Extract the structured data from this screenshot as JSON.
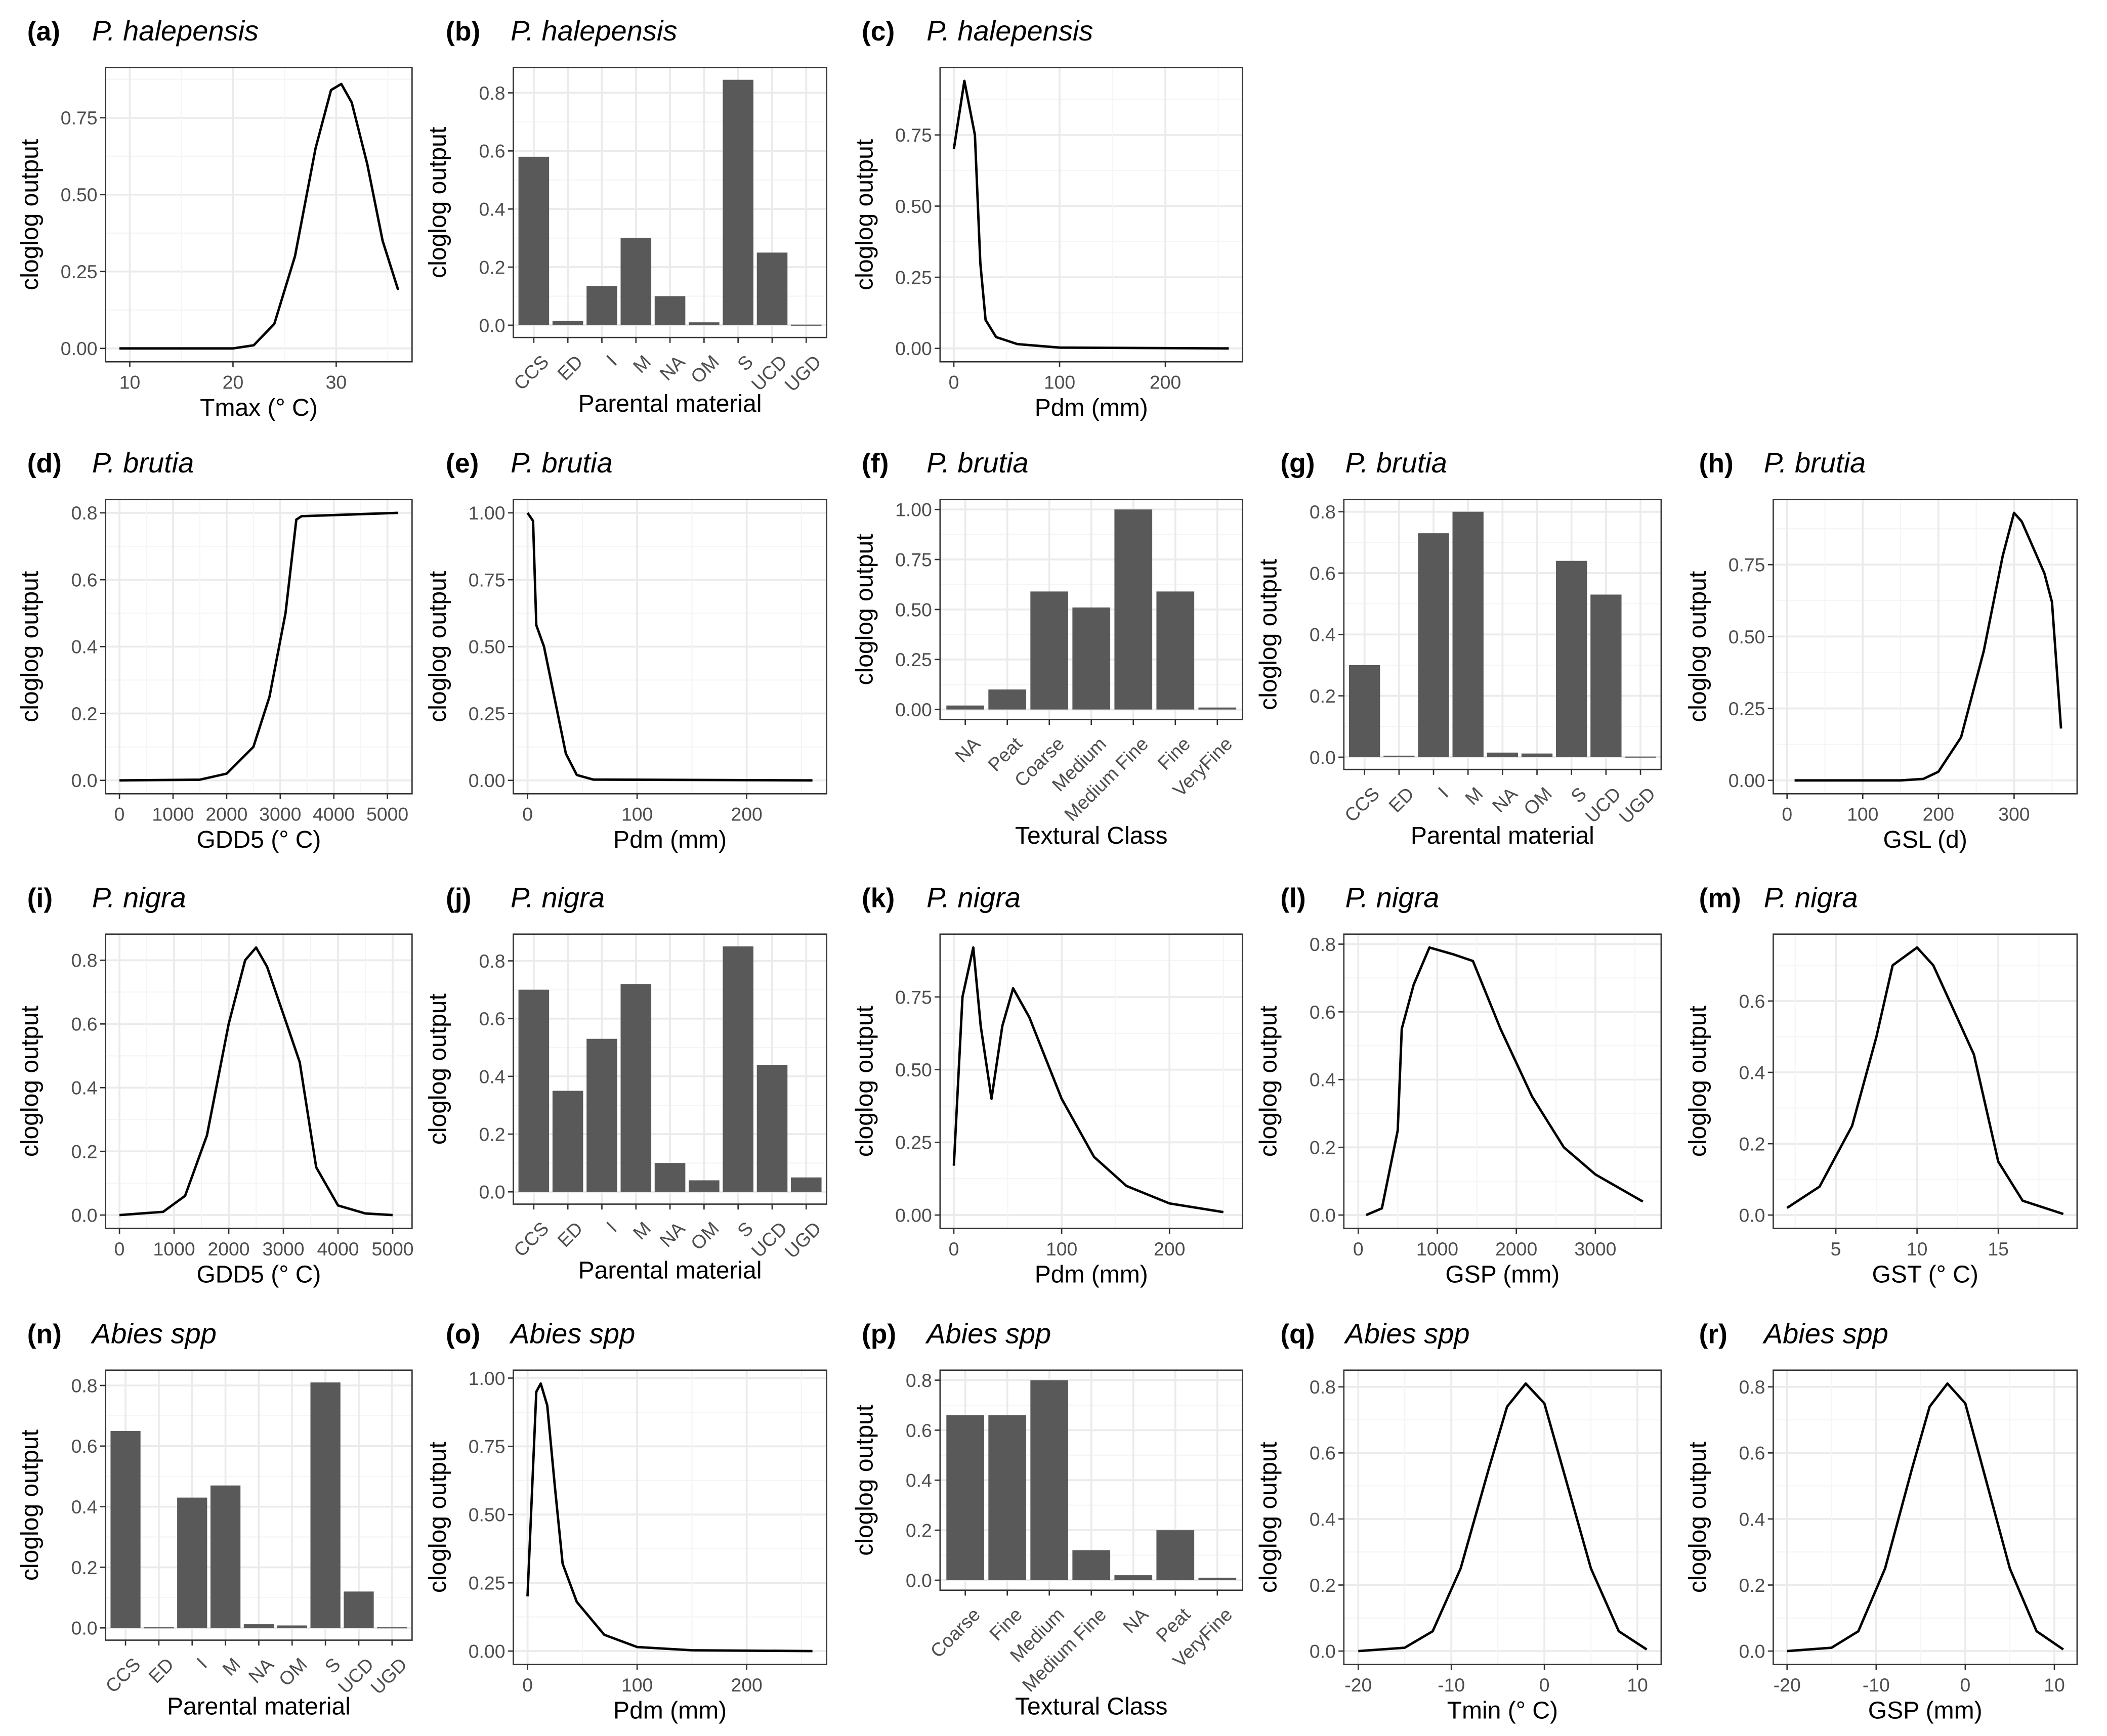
{
  "chart_data": [
    {
      "id": "a",
      "label": "(a)",
      "species": "P. halepensis",
      "type": "line",
      "xlabel": "Tmax (° C)",
      "ylabel": "cloglog output",
      "xlim": [
        9,
        36
      ],
      "ylim": [
        0,
        0.87
      ],
      "xticks": [
        10,
        20,
        30
      ],
      "yticks": [
        0,
        0.25,
        0.5,
        0.75
      ],
      "ytick_labels": [
        "0.00",
        "0.25",
        "0.50",
        "0.75"
      ],
      "x": [
        9,
        20,
        22,
        24,
        26,
        28,
        29.5,
        30.5,
        31.5,
        33,
        34.5,
        36
      ],
      "y": [
        0,
        0,
        0.01,
        0.08,
        0.3,
        0.65,
        0.84,
        0.86,
        0.8,
        0.6,
        0.35,
        0.19
      ]
    },
    {
      "id": "b",
      "label": "(b)",
      "species": "P. halepensis",
      "type": "bar",
      "xlabel": "Parental material",
      "ylabel": "cloglog output",
      "categories": [
        "CCS",
        "ED",
        "I",
        "M",
        "NA",
        "OM",
        "S",
        "UCD",
        "UGD"
      ],
      "values": [
        0.58,
        0.015,
        0.135,
        0.3,
        0.1,
        0.01,
        0.845,
        0.25,
        0.002
      ],
      "ylim": [
        0,
        0.845
      ],
      "yticks": [
        0,
        0.2,
        0.4,
        0.6,
        0.8
      ],
      "ytick_labels": [
        "0.0",
        "0.2",
        "0.4",
        "0.6",
        "0.8"
      ]
    },
    {
      "id": "c",
      "label": "(c)",
      "species": "P. halepensis",
      "type": "line",
      "xlabel": "Pdm (mm)",
      "ylabel": "cloglog output",
      "xlim": [
        0,
        260
      ],
      "ylim": [
        0,
        0.94
      ],
      "xticks": [
        0,
        100,
        200
      ],
      "yticks": [
        0,
        0.25,
        0.5,
        0.75
      ],
      "ytick_labels": [
        "0.00",
        "0.25",
        "0.50",
        "0.75"
      ],
      "x": [
        0,
        10,
        20,
        25,
        30,
        40,
        60,
        100,
        260
      ],
      "y": [
        0.7,
        0.94,
        0.75,
        0.3,
        0.1,
        0.04,
        0.015,
        0.003,
        0
      ]
    },
    {
      "id": "d",
      "label": "(d)",
      "species": "P. brutia",
      "type": "line",
      "xlabel": "GDD5 (° C)",
      "ylabel": "cloglog output",
      "xlim": [
        0,
        5200
      ],
      "ylim": [
        0,
        0.8
      ],
      "xticks": [
        0,
        1000,
        2000,
        3000,
        4000,
        5000
      ],
      "yticks": [
        0,
        0.2,
        0.4,
        0.6,
        0.8
      ],
      "ytick_labels": [
        "0.0",
        "0.2",
        "0.4",
        "0.6",
        "0.8"
      ],
      "x": [
        0,
        1500,
        2000,
        2500,
        2800,
        3100,
        3300,
        3400,
        5200
      ],
      "y": [
        0,
        0.002,
        0.02,
        0.1,
        0.25,
        0.5,
        0.78,
        0.79,
        0.8
      ]
    },
    {
      "id": "e",
      "label": "(e)",
      "species": "P. brutia",
      "type": "line",
      "xlabel": "Pdm (mm)",
      "ylabel": "cloglog output",
      "xlim": [
        0,
        260
      ],
      "ylim": [
        0,
        1.0
      ],
      "xticks": [
        0,
        100,
        200
      ],
      "yticks": [
        0,
        0.25,
        0.5,
        0.75,
        1.0
      ],
      "ytick_labels": [
        "0.00",
        "0.25",
        "0.50",
        "0.75",
        "1.00"
      ],
      "x": [
        0,
        5,
        8,
        15,
        25,
        35,
        45,
        60,
        260
      ],
      "y": [
        1.0,
        0.97,
        0.58,
        0.5,
        0.3,
        0.1,
        0.02,
        0.003,
        0
      ]
    },
    {
      "id": "f",
      "label": "(f)",
      "species": "P. brutia",
      "type": "bar",
      "xlabel": "Textural Class",
      "ylabel": "cloglog output",
      "categories": [
        "NA",
        "Peat",
        "Coarse",
        "Medium",
        "Medium Fine",
        "Fine",
        "VeryFine"
      ],
      "values": [
        0.02,
        0.1,
        0.59,
        0.51,
        1.0,
        0.59,
        0.01
      ],
      "ylim": [
        0,
        1.0
      ],
      "yticks": [
        0,
        0.25,
        0.5,
        0.75,
        1.0
      ],
      "ytick_labels": [
        "0.00",
        "0.25",
        "0.50",
        "0.75",
        "1.00"
      ]
    },
    {
      "id": "g",
      "label": "(g)",
      "species": "P. brutia",
      "type": "bar",
      "xlabel": "Parental material",
      "ylabel": "cloglog output",
      "categories": [
        "CCS",
        "ED",
        "I",
        "M",
        "NA",
        "OM",
        "S",
        "UCD",
        "UGD"
      ],
      "values": [
        0.3,
        0.005,
        0.73,
        0.8,
        0.015,
        0.012,
        0.64,
        0.53,
        0.002
      ],
      "ylim": [
        0,
        0.8
      ],
      "yticks": [
        0,
        0.2,
        0.4,
        0.6,
        0.8
      ],
      "ytick_labels": [
        "0.0",
        "0.2",
        "0.4",
        "0.6",
        "0.8"
      ]
    },
    {
      "id": "h",
      "label": "(h)",
      "species": "P. brutia",
      "type": "line",
      "xlabel": "GSL (d)",
      "ylabel": "cloglog output",
      "xlim": [
        0,
        365
      ],
      "ylim": [
        0,
        0.93
      ],
      "xticks": [
        0,
        100,
        200,
        300
      ],
      "yticks": [
        0,
        0.25,
        0.5,
        0.75
      ],
      "ytick_labels": [
        "0.00",
        "0.25",
        "0.50",
        "0.75"
      ],
      "x": [
        10,
        150,
        180,
        200,
        230,
        260,
        285,
        300,
        310,
        340,
        350,
        362
      ],
      "y": [
        0,
        0,
        0.005,
        0.03,
        0.15,
        0.45,
        0.78,
        0.93,
        0.9,
        0.72,
        0.62,
        0.18
      ]
    },
    {
      "id": "i",
      "label": "(i)",
      "species": "P. nigra",
      "type": "line",
      "xlabel": "GDD5 (° C)",
      "ylabel": "cloglog output",
      "xlim": [
        0,
        5100
      ],
      "ylim": [
        0,
        0.84
      ],
      "xticks": [
        0,
        1000,
        2000,
        3000,
        4000,
        5000
      ],
      "yticks": [
        0,
        0.2,
        0.4,
        0.6,
        0.8
      ],
      "ytick_labels": [
        "0.0",
        "0.2",
        "0.4",
        "0.6",
        "0.8"
      ],
      "x": [
        0,
        800,
        1200,
        1600,
        2000,
        2300,
        2500,
        2700,
        3100,
        3300,
        3600,
        4000,
        4500,
        5000
      ],
      "y": [
        0,
        0.01,
        0.06,
        0.25,
        0.6,
        0.8,
        0.84,
        0.78,
        0.58,
        0.48,
        0.15,
        0.03,
        0.005,
        0
      ]
    },
    {
      "id": "j",
      "label": "(j)",
      "species": "P. nigra",
      "type": "bar",
      "xlabel": "Parental material",
      "ylabel": "cloglog output",
      "categories": [
        "CCS",
        "ED",
        "I",
        "M",
        "NA",
        "OM",
        "S",
        "UCD",
        "UGD"
      ],
      "values": [
        0.7,
        0.35,
        0.53,
        0.72,
        0.1,
        0.04,
        0.85,
        0.44,
        0.05
      ],
      "ylim": [
        0,
        0.85
      ],
      "yticks": [
        0,
        0.2,
        0.4,
        0.6,
        0.8
      ],
      "ytick_labels": [
        "0.0",
        "0.2",
        "0.4",
        "0.6",
        "0.8"
      ]
    },
    {
      "id": "k",
      "label": "(k)",
      "species": "P. nigra",
      "type": "line",
      "xlabel": "Pdm (mm)",
      "ylabel": "cloglog output",
      "xlim": [
        0,
        255
      ],
      "ylim": [
        0,
        0.92
      ],
      "xticks": [
        0,
        100,
        200
      ],
      "yticks": [
        0,
        0.25,
        0.5,
        0.75
      ],
      "ytick_labels": [
        "0.00",
        "0.25",
        "0.50",
        "0.75"
      ],
      "x": [
        0,
        8,
        18,
        25,
        35,
        45,
        55,
        70,
        100,
        130,
        160,
        200,
        250
      ],
      "y": [
        0.17,
        0.75,
        0.92,
        0.65,
        0.4,
        0.65,
        0.78,
        0.68,
        0.4,
        0.2,
        0.1,
        0.04,
        0.01
      ]
    },
    {
      "id": "l",
      "label": "(l)",
      "species": "P. nigra",
      "type": "line",
      "xlabel": "GSP (mm)",
      "ylabel": "cloglog output",
      "xlim": [
        0,
        3650
      ],
      "ylim": [
        0,
        0.79
      ],
      "xticks": [
        0,
        1000,
        2000,
        3000
      ],
      "yticks": [
        0,
        0.2,
        0.4,
        0.6,
        0.8
      ],
      "ytick_labels": [
        "0.0",
        "0.2",
        "0.4",
        "0.6",
        "0.8"
      ],
      "x": [
        100,
        300,
        500,
        550,
        700,
        900,
        1200,
        1450,
        1800,
        2200,
        2600,
        3000,
        3600
      ],
      "y": [
        0,
        0.02,
        0.25,
        0.55,
        0.68,
        0.79,
        0.77,
        0.75,
        0.55,
        0.35,
        0.2,
        0.12,
        0.04
      ]
    },
    {
      "id": "m",
      "label": "(m)",
      "species": "P. nigra",
      "type": "line",
      "xlabel": "GST (° C)",
      "ylabel": "cloglog output",
      "xlim": [
        2,
        19
      ],
      "ylim": [
        0,
        0.75
      ],
      "xticks": [
        5,
        10,
        15
      ],
      "yticks": [
        0,
        0.2,
        0.4,
        0.6
      ],
      "ytick_labels": [
        "0.0",
        "0.2",
        "0.4",
        "0.6"
      ],
      "x": [
        2,
        4,
        6,
        7.5,
        8.5,
        10,
        11,
        12.5,
        13.5,
        15,
        16.5,
        19
      ],
      "y": [
        0.02,
        0.08,
        0.25,
        0.5,
        0.7,
        0.75,
        0.7,
        0.55,
        0.45,
        0.15,
        0.04,
        0.003
      ]
    },
    {
      "id": "n",
      "label": "(n)",
      "species": "Abies spp",
      "type": "bar",
      "xlabel": "Parental material",
      "ylabel": "cloglog output",
      "categories": [
        "CCS",
        "ED",
        "I",
        "M",
        "NA",
        "OM",
        "S",
        "UCD",
        "UGD"
      ],
      "values": [
        0.65,
        0.002,
        0.43,
        0.47,
        0.012,
        0.008,
        0.81,
        0.12,
        0.001
      ],
      "ylim": [
        0,
        0.81
      ],
      "yticks": [
        0,
        0.2,
        0.4,
        0.6,
        0.8
      ],
      "ytick_labels": [
        "0.0",
        "0.2",
        "0.4",
        "0.6",
        "0.8"
      ]
    },
    {
      "id": "o",
      "label": "(o)",
      "species": "Abies spp",
      "type": "line",
      "xlabel": "Pdm (mm)",
      "ylabel": "cloglog output",
      "xlim": [
        0,
        260
      ],
      "ylim": [
        0,
        0.98
      ],
      "xticks": [
        0,
        100,
        200
      ],
      "yticks": [
        0,
        0.25,
        0.5,
        0.75,
        1.0
      ],
      "ytick_labels": [
        "0.00",
        "0.25",
        "0.50",
        "0.75",
        "1.00"
      ],
      "x": [
        0,
        8,
        12,
        18,
        25,
        32,
        45,
        70,
        100,
        150,
        260
      ],
      "y": [
        0.2,
        0.95,
        0.98,
        0.9,
        0.6,
        0.32,
        0.18,
        0.06,
        0.015,
        0.003,
        0
      ]
    },
    {
      "id": "p",
      "label": "(p)",
      "species": "Abies spp",
      "type": "bar",
      "xlabel": "Textural Class",
      "ylabel": "cloglog output",
      "categories": [
        "Coarse",
        "Fine",
        "Medium",
        "Medium Fine",
        "NA",
        "Peat",
        "VeryFine"
      ],
      "values": [
        0.66,
        0.66,
        0.8,
        0.12,
        0.02,
        0.2,
        0.01
      ],
      "ylim": [
        0,
        0.8
      ],
      "yticks": [
        0,
        0.2,
        0.4,
        0.6,
        0.8
      ],
      "ytick_labels": [
        "0.0",
        "0.2",
        "0.4",
        "0.6",
        "0.8"
      ]
    },
    {
      "id": "q",
      "label": "(q)",
      "species": "Abies spp",
      "type": "line",
      "xlabel": "Tmin (° C)",
      "ylabel": "cloglog output",
      "xlim": [
        -20,
        11
      ],
      "ylim": [
        0,
        0.81
      ],
      "xticks": [
        -20,
        -10,
        0,
        10
      ],
      "yticks": [
        0,
        0.2,
        0.4,
        0.6,
        0.8
      ],
      "ytick_labels": [
        "0.0",
        "0.2",
        "0.4",
        "0.6",
        "0.8"
      ],
      "x": [
        -20,
        -15,
        -12,
        -9,
        -6,
        -4,
        -2,
        0,
        2,
        5,
        8,
        11
      ],
      "y": [
        0,
        0.01,
        0.06,
        0.25,
        0.55,
        0.74,
        0.81,
        0.75,
        0.55,
        0.25,
        0.06,
        0.005
      ]
    },
    {
      "id": "r",
      "label": "(r)",
      "species": "Abies spp",
      "type": "line",
      "xlabel": "GSP (mm)",
      "ylabel": "cloglog output",
      "xlim": [
        -20,
        11
      ],
      "ylim": [
        0,
        0.81
      ],
      "xticks": [
        -20,
        -10,
        0,
        10
      ],
      "yticks": [
        0,
        0.2,
        0.4,
        0.6,
        0.8
      ],
      "ytick_labels": [
        "0.0",
        "0.2",
        "0.4",
        "0.6",
        "0.8"
      ],
      "x": [
        -20,
        -15,
        -12,
        -9,
        -6,
        -4,
        -2,
        0,
        2,
        5,
        8,
        11
      ],
      "y": [
        0,
        0.01,
        0.06,
        0.25,
        0.55,
        0.74,
        0.81,
        0.75,
        0.55,
        0.25,
        0.06,
        0.005
      ]
    }
  ],
  "colors": {
    "bar": "#595959",
    "line": "#000000",
    "grid_major": "#ebebeb",
    "grid_minor": "#f5f5f5",
    "border": "#333333",
    "tick_text": "#4d4d4d"
  }
}
